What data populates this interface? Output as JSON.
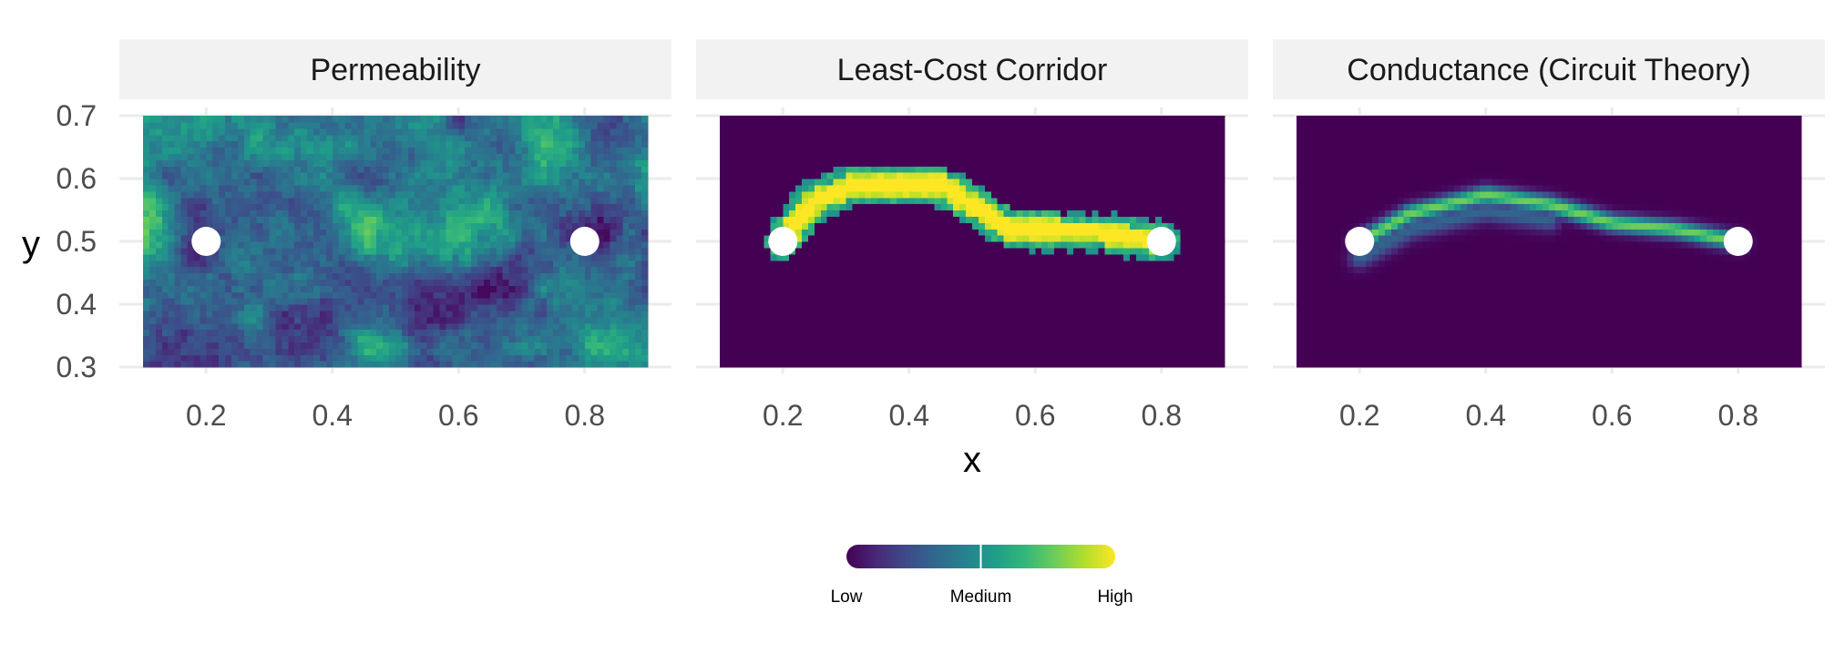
{
  "chart_data": {
    "type": "heatmap",
    "layout": "facets",
    "facets": [
      {
        "title": "Permeability",
        "kind": "permeability"
      },
      {
        "title": "Least-Cost Corridor",
        "kind": "corridor"
      },
      {
        "title": "Conductance (Circuit Theory)",
        "kind": "conductance"
      }
    ],
    "xlabel": "x",
    "ylabel": "y",
    "xlim": [
      0.1,
      0.9
    ],
    "ylim": [
      0.3,
      0.7
    ],
    "x_ticks": [
      "0.2",
      "0.4",
      "0.6",
      "0.8"
    ],
    "y_ticks": [
      "0.3",
      "0.4",
      "0.5",
      "0.6",
      "0.7"
    ],
    "grid": true,
    "nodes": [
      {
        "x": 0.2,
        "y": 0.5
      },
      {
        "x": 0.8,
        "y": 0.5
      }
    ],
    "node_color": "#ffffff",
    "corridor_path": [
      {
        "x": 0.2,
        "y": 0.5
      },
      {
        "x": 0.25,
        "y": 0.565
      },
      {
        "x": 0.31,
        "y": 0.59
      },
      {
        "x": 0.45,
        "y": 0.59
      },
      {
        "x": 0.5,
        "y": 0.56
      },
      {
        "x": 0.56,
        "y": 0.52
      },
      {
        "x": 0.7,
        "y": 0.515
      },
      {
        "x": 0.8,
        "y": 0.5
      }
    ],
    "conductance_path": [
      {
        "x": 0.2,
        "y": 0.5
      },
      {
        "x": 0.28,
        "y": 0.545
      },
      {
        "x": 0.4,
        "y": 0.575
      },
      {
        "x": 0.5,
        "y": 0.56
      },
      {
        "x": 0.6,
        "y": 0.53
      },
      {
        "x": 0.7,
        "y": 0.52
      },
      {
        "x": 0.8,
        "y": 0.5
      }
    ],
    "legend": {
      "position": "bottom",
      "labels": [
        "Low",
        "Medium",
        "High"
      ],
      "colors": [
        "#440154",
        "#482878",
        "#3E4A89",
        "#31688E",
        "#26828E",
        "#1F9E89",
        "#35B779",
        "#6DCD59",
        "#B4DE2C",
        "#FDE725"
      ]
    }
  }
}
